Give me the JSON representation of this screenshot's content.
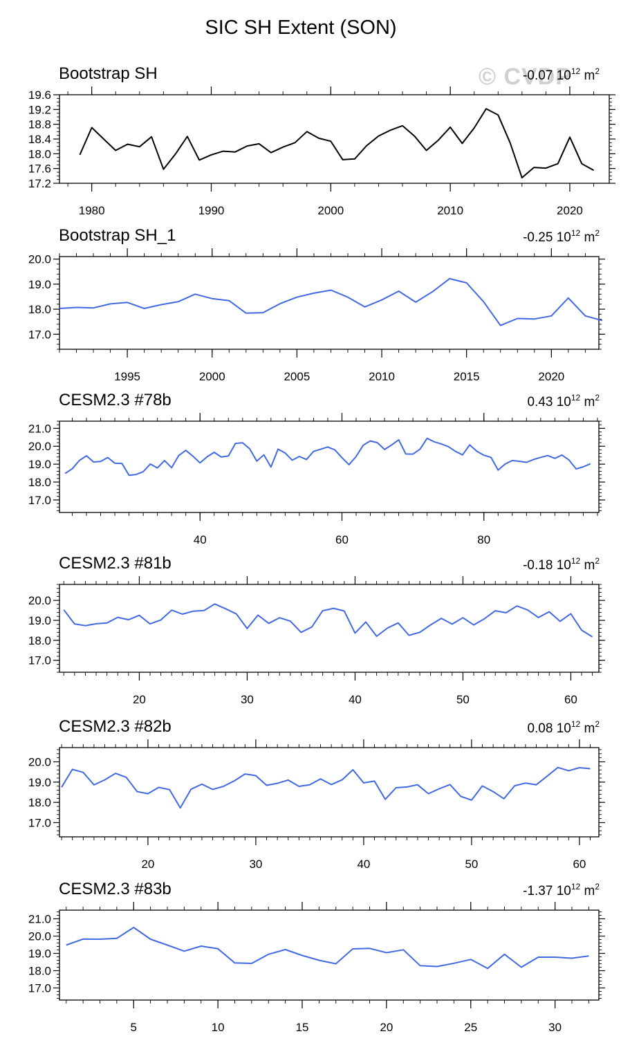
{
  "figure_title": "SIC SH Extent (SON)",
  "watermark": "© CVDP",
  "units_base": "10",
  "units_exp": "12",
  "units_suffix": "m",
  "units_suffix_exp": "2",
  "colors": {
    "obs": "#000000",
    "model": "#4169e1",
    "frame": "#000000",
    "watermark": "#aaaaaa"
  },
  "chart_data": [
    {
      "type": "line",
      "title": "Bootstrap SH",
      "trend_value": "-0.07",
      "line_color": "#000000",
      "xlim": [
        1977.3,
        2023.3
      ],
      "ylim": [
        17.2,
        19.6
      ],
      "xticks": [
        1980,
        1990,
        2000,
        2010,
        2020
      ],
      "x_minor_step": 2,
      "yticks": [
        17.2,
        17.6,
        18.0,
        18.4,
        18.8,
        19.2,
        19.6
      ],
      "y_minor_step": 0.1,
      "ytick_decimals": 1,
      "x_start": 1979,
      "values": [
        17.97,
        18.71,
        18.4,
        18.09,
        18.26,
        18.19,
        18.46,
        17.58,
        17.99,
        18.47,
        17.83,
        17.97,
        18.07,
        18.05,
        18.21,
        18.27,
        18.03,
        18.18,
        18.3,
        18.6,
        18.42,
        18.34,
        17.84,
        17.86,
        18.22,
        18.48,
        18.64,
        18.76,
        18.48,
        18.09,
        18.37,
        18.72,
        18.28,
        18.7,
        19.22,
        19.05,
        18.3,
        17.35,
        17.63,
        17.61,
        17.73,
        18.45,
        17.73,
        17.55
      ]
    },
    {
      "type": "line",
      "title": "Bootstrap SH_1",
      "trend_value": "-0.25",
      "line_color": "#4169e1",
      "xlim": [
        1991,
        2022.8
      ],
      "ylim": [
        16.4,
        20.1
      ],
      "xticks": [
        1995,
        2000,
        2005,
        2010,
        2015,
        2020
      ],
      "x_minor_step": 1,
      "yticks": [
        17.0,
        18.0,
        19.0,
        20.0
      ],
      "y_minor_step": 0.2,
      "ytick_decimals": 1,
      "x_start": 1991,
      "values": [
        18.03,
        18.07,
        18.05,
        18.21,
        18.27,
        18.03,
        18.18,
        18.3,
        18.6,
        18.42,
        18.34,
        17.84,
        17.86,
        18.22,
        18.48,
        18.64,
        18.76,
        18.48,
        18.09,
        18.37,
        18.72,
        18.28,
        18.7,
        19.22,
        19.05,
        18.3,
        17.35,
        17.63,
        17.61,
        17.73,
        18.45,
        17.73,
        17.55
      ]
    },
    {
      "type": "line",
      "title": "CESM2.3 #78b",
      "trend_value": "0.43",
      "line_color": "#4169e1",
      "xlim": [
        20.2,
        96.2
      ],
      "ylim": [
        16.3,
        21.4
      ],
      "xticks": [
        40,
        60,
        80
      ],
      "x_minor_step": 2,
      "yticks": [
        17.0,
        18.0,
        19.0,
        20.0,
        21.0
      ],
      "y_minor_step": 0.2,
      "ytick_decimals": 1,
      "x_start": 21,
      "values": [
        18.48,
        18.74,
        19.2,
        19.47,
        19.12,
        19.15,
        19.37,
        19.05,
        19.04,
        18.38,
        18.42,
        18.58,
        19.01,
        18.79,
        19.2,
        18.8,
        19.48,
        19.77,
        19.45,
        19.07,
        19.41,
        19.66,
        19.4,
        19.46,
        20.16,
        20.19,
        19.86,
        19.17,
        19.52,
        18.84,
        19.84,
        19.62,
        19.22,
        19.43,
        19.26,
        19.71,
        19.83,
        19.96,
        19.8,
        19.36,
        18.97,
        19.43,
        20.06,
        20.3,
        20.2,
        19.82,
        20.07,
        20.36,
        19.57,
        19.56,
        19.84,
        20.44,
        20.25,
        20.13,
        19.98,
        19.71,
        19.52,
        20.08,
        19.72,
        19.5,
        19.38,
        18.67,
        19.01,
        19.2,
        19.16,
        19.1,
        19.26,
        19.38,
        19.48,
        19.32,
        19.51,
        19.23,
        18.73,
        18.85,
        19.02
      ]
    },
    {
      "type": "line",
      "title": "CESM2.3 #81b",
      "trend_value": "-0.18",
      "line_color": "#4169e1",
      "xlim": [
        12.6,
        62.6
      ],
      "ylim": [
        16.4,
        20.8
      ],
      "xticks": [
        20,
        30,
        40,
        50,
        60
      ],
      "x_minor_step": 1,
      "yticks": [
        17.0,
        18.0,
        19.0,
        20.0
      ],
      "y_minor_step": 0.2,
      "ytick_decimals": 1,
      "x_start": 13,
      "values": [
        19.53,
        18.82,
        18.73,
        18.83,
        18.87,
        19.15,
        19.03,
        19.25,
        18.82,
        19.02,
        19.51,
        19.31,
        19.46,
        19.49,
        19.82,
        19.58,
        19.32,
        18.59,
        19.26,
        18.85,
        19.13,
        18.96,
        18.4,
        18.67,
        19.48,
        19.6,
        19.47,
        18.36,
        18.92,
        18.2,
        18.61,
        18.87,
        18.25,
        18.4,
        18.77,
        19.1,
        18.81,
        19.13,
        18.77,
        19.08,
        19.48,
        19.38,
        19.72,
        19.52,
        19.14,
        19.43,
        18.95,
        19.33,
        18.51,
        18.17
      ]
    },
    {
      "type": "line",
      "title": "CESM2.3 #82b",
      "trend_value": "0.08",
      "line_color": "#4169e1",
      "xlim": [
        11.8,
        61.8
      ],
      "ylim": [
        16.3,
        20.7
      ],
      "xticks": [
        20,
        30,
        40,
        50,
        60
      ],
      "x_minor_step": 1,
      "yticks": [
        17.0,
        18.0,
        19.0,
        20.0
      ],
      "y_minor_step": 0.2,
      "ytick_decimals": 1,
      "x_start": 12,
      "values": [
        18.75,
        19.63,
        19.48,
        18.86,
        19.11,
        19.43,
        19.23,
        18.53,
        18.43,
        18.74,
        18.63,
        17.73,
        18.65,
        18.9,
        18.64,
        18.79,
        19.06,
        19.4,
        19.32,
        18.84,
        18.94,
        19.1,
        18.79,
        18.87,
        19.16,
        18.88,
        19.11,
        19.61,
        18.96,
        19.05,
        18.15,
        18.72,
        18.76,
        18.87,
        18.43,
        18.67,
        18.88,
        18.3,
        18.11,
        18.81,
        18.53,
        18.18,
        18.82,
        18.95,
        18.87,
        19.29,
        19.72,
        19.56,
        19.71,
        19.66
      ]
    },
    {
      "type": "line",
      "title": "CESM2.3 #83b",
      "trend_value": "-1.37",
      "line_color": "#4169e1",
      "xlim": [
        0.6,
        32.6
      ],
      "ylim": [
        16.3,
        21.5
      ],
      "xticks": [
        5,
        10,
        15,
        20,
        25,
        30
      ],
      "x_minor_step": 1,
      "yticks": [
        17.0,
        18.0,
        19.0,
        20.0,
        21.0
      ],
      "y_minor_step": 0.2,
      "ytick_decimals": 1,
      "x_start": 1,
      "values": [
        19.48,
        19.83,
        19.82,
        19.87,
        20.5,
        19.82,
        19.48,
        19.13,
        19.42,
        19.27,
        18.45,
        18.42,
        18.95,
        19.22,
        18.88,
        18.6,
        18.4,
        19.26,
        19.29,
        19.04,
        19.21,
        18.29,
        18.24,
        18.43,
        18.65,
        18.13,
        18.95,
        18.2,
        18.78,
        18.78,
        18.72,
        18.85
      ]
    }
  ]
}
